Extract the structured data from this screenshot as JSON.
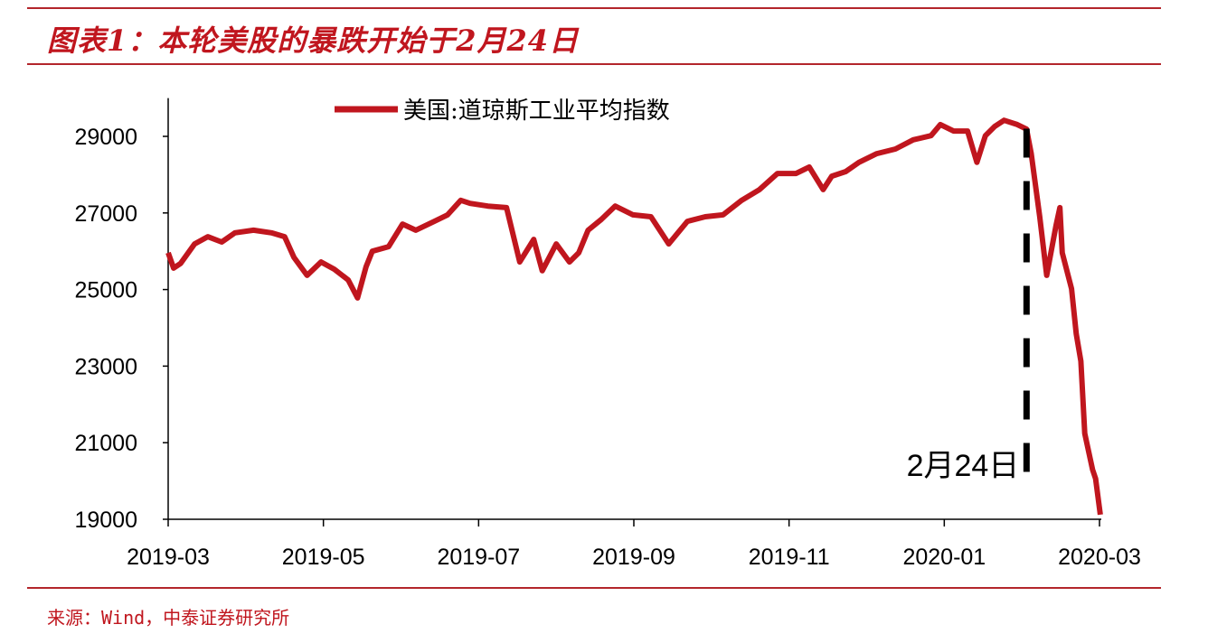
{
  "title": "图表1：本轮美股的暴跌开始于2月24日",
  "source": "来源：Wind，中泰证券研究所",
  "chart_data": {
    "type": "line",
    "title": "图表1：本轮美股的暴跌开始于2月24日",
    "xlabel": "",
    "ylabel": "",
    "x_unit": "months since 2019-03",
    "xlim": [
      0,
      12
    ],
    "ylim": [
      19000,
      30000
    ],
    "yticks": [
      19000,
      21000,
      23000,
      25000,
      27000,
      29000
    ],
    "xticks": [
      {
        "v": 0,
        "label": "2019-03"
      },
      {
        "v": 2,
        "label": "2019-05"
      },
      {
        "v": 4,
        "label": "2019-07"
      },
      {
        "v": 6,
        "label": "2019-09"
      },
      {
        "v": 8,
        "label": "2019-11"
      },
      {
        "v": 10,
        "label": "2020-01"
      },
      {
        "v": 12,
        "label": "2020-03"
      }
    ],
    "legend": {
      "position": "top-center"
    },
    "color": "#c0161e",
    "series": [
      {
        "name": "美国:道琼斯工业平均指数",
        "x": [
          0,
          0.07,
          0.16,
          0.34,
          0.51,
          0.69,
          0.86,
          1.1,
          1.33,
          1.5,
          1.62,
          1.79,
          1.97,
          2.14,
          2.32,
          2.44,
          2.55,
          2.63,
          2.84,
          3.02,
          3.19,
          3.43,
          3.6,
          3.77,
          3.89,
          4.12,
          4.36,
          4.53,
          4.71,
          4.82,
          5.0,
          5.17,
          5.29,
          5.41,
          5.58,
          5.76,
          5.99,
          6.22,
          6.45,
          6.69,
          6.92,
          7.15,
          7.39,
          7.62,
          7.85,
          8.09,
          8.26,
          8.44,
          8.55,
          8.73,
          8.9,
          9.13,
          9.37,
          9.6,
          9.83,
          9.95,
          10.12,
          10.3,
          10.42,
          10.53,
          10.65,
          10.77,
          10.94,
          11.06,
          11.12,
          11.23,
          11.32,
          11.44,
          11.49,
          11.52,
          11.64,
          11.7,
          11.76,
          11.81,
          11.91,
          11.95,
          12.01
        ],
        "values": [
          25960,
          25560,
          25680,
          26190,
          26380,
          26240,
          26480,
          26550,
          26480,
          26380,
          25840,
          25370,
          25720,
          25530,
          25250,
          24780,
          25600,
          26000,
          26120,
          26710,
          26550,
          26780,
          26950,
          27330,
          27250,
          27180,
          27140,
          25720,
          26310,
          25490,
          26190,
          25720,
          25960,
          26550,
          26830,
          27180,
          26950,
          26900,
          26190,
          26780,
          26900,
          26950,
          27330,
          27610,
          28030,
          28030,
          28200,
          27610,
          27960,
          28080,
          28320,
          28550,
          28670,
          28910,
          29020,
          29310,
          29140,
          29140,
          28320,
          29020,
          29260,
          29420,
          29310,
          29190,
          28550,
          26900,
          25370,
          26670,
          27140,
          25960,
          25020,
          23840,
          23130,
          21240,
          20300,
          20060,
          19120
        ]
      }
    ],
    "annotations": [
      {
        "type": "vline",
        "x": 11.06,
        "y_from": 29200,
        "y_to": 19850,
        "style": "dashed",
        "label": "2月24日"
      }
    ]
  }
}
